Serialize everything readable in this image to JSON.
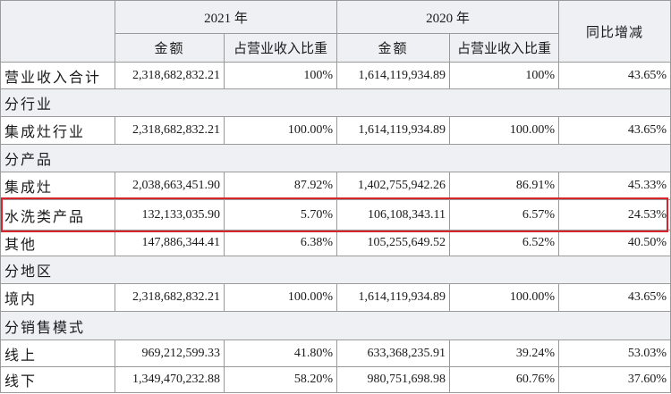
{
  "colors": {
    "header_bg": "#eef0f3",
    "section_bg": "#eef0f3",
    "grid_line": "#9a9a9a",
    "highlight": "#d7252d",
    "text": "#1a1a1a"
  },
  "header": {
    "year_2021": "2021 年",
    "year_2020": "2020 年",
    "amount": "金额",
    "ratio": "占营业收入比重",
    "yoy": "同比增减"
  },
  "rows": [
    {
      "label": "营业收入合计",
      "amount_2021": "2,318,682,832.21",
      "ratio_2021": "100%",
      "amount_2020": "1,614,119,934.89",
      "ratio_2020": "100%",
      "yoy": "43.65%"
    },
    {
      "label": "分行业",
      "section": true
    },
    {
      "label": "集成灶行业",
      "amount_2021": "2,318,682,832.21",
      "ratio_2021": "100.00%",
      "amount_2020": "1,614,119,934.89",
      "ratio_2020": "100.00%",
      "yoy": "43.65%"
    },
    {
      "label": "分产品",
      "section": true
    },
    {
      "label": "集成灶",
      "amount_2021": "2,038,663,451.90",
      "ratio_2021": "87.92%",
      "amount_2020": "1,402,755,942.26",
      "ratio_2020": "86.91%",
      "yoy": "45.33%"
    },
    {
      "label": "水洗类产品",
      "amount_2021": "132,133,035.90",
      "ratio_2021": "5.70%",
      "amount_2020": "106,108,343.11",
      "ratio_2020": "6.57%",
      "yoy": "24.53%",
      "highlight": true
    },
    {
      "label": "其他",
      "amount_2021": "147,886,344.41",
      "ratio_2021": "6.38%",
      "amount_2020": "105,255,649.52",
      "ratio_2020": "6.52%",
      "yoy": "40.50%"
    },
    {
      "label": "分地区",
      "section": true
    },
    {
      "label": "境内",
      "amount_2021": "2,318,682,832.21",
      "ratio_2021": "100.00%",
      "amount_2020": "1,614,119,934.89",
      "ratio_2020": "100.00%",
      "yoy": "43.65%"
    },
    {
      "label": "分销售模式",
      "section": true
    },
    {
      "label": "线上",
      "amount_2021": "969,212,599.33",
      "ratio_2021": "41.80%",
      "amount_2020": "633,368,235.91",
      "ratio_2020": "39.24%",
      "yoy": "53.03%"
    },
    {
      "label": "线下",
      "amount_2021": "1,349,470,232.88",
      "ratio_2021": "58.20%",
      "amount_2020": "980,751,698.98",
      "ratio_2020": "60.76%",
      "yoy": "37.60%"
    }
  ]
}
